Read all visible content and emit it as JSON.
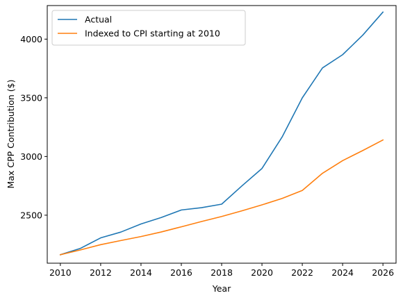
{
  "chart_data": {
    "type": "line",
    "title": "",
    "xlabel": "Year",
    "ylabel": "Max CPP Contribution ($)",
    "xlim": [
      2009.35,
      2026.65
    ],
    "ylim": [
      2091,
      4286
    ],
    "xticks": [
      2010,
      2012,
      2014,
      2016,
      2018,
      2020,
      2022,
      2024,
      2026
    ],
    "yticks": [
      2500,
      3000,
      3500,
      4000
    ],
    "grid": false,
    "legend_position": "top-left",
    "x": [
      2010,
      2011,
      2012,
      2013,
      2014,
      2015,
      2016,
      2017,
      2018,
      2019,
      2020,
      2021,
      2022,
      2023,
      2024,
      2025,
      2026
    ],
    "series": [
      {
        "name": "Actual",
        "color": "#1f77b4",
        "values": [
          2163.15,
          2217.6,
          2306.7,
          2356.2,
          2425.5,
          2479.95,
          2544.3,
          2564.1,
          2593.8,
          2748.9,
          2898.0,
          3166.45,
          3499.8,
          3754.45,
          3867.5,
          4034.1,
          4230.45
        ]
      },
      {
        "name": "Indexed to CPI starting at 2010",
        "color": "#ff7f0e",
        "values": [
          2163.15,
          2204,
          2249,
          2284,
          2318,
          2357,
          2401,
          2446,
          2489,
          2537,
          2588,
          2643,
          2711,
          2857,
          2965,
          3051,
          3141
        ]
      }
    ]
  }
}
